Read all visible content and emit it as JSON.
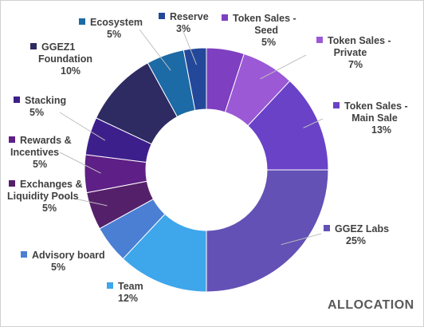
{
  "chart_data": {
    "type": "pie",
    "variant": "donut",
    "title": "ALLOCATION",
    "legend": "none",
    "slices": [
      {
        "label": "Token Sales - Seed",
        "lines": [
          "Token Sales -",
          "Seed"
        ],
        "value": 5,
        "pct_label": "5%",
        "color": "#7e3fc0"
      },
      {
        "label": "Token Sales - Private",
        "lines": [
          "Token Sales -",
          "Private"
        ],
        "value": 7,
        "pct_label": "7%",
        "color": "#9b59d6"
      },
      {
        "label": "Token Sales - Main Sale",
        "lines": [
          "Token Sales -",
          "Main Sale"
        ],
        "value": 13,
        "pct_label": "13%",
        "color": "#6a42c8"
      },
      {
        "label": "GGEZ Labs",
        "lines": [
          "GGEZ Labs"
        ],
        "value": 25,
        "pct_label": "25%",
        "color": "#6351b5"
      },
      {
        "label": "Team",
        "lines": [
          "Team"
        ],
        "value": 12,
        "pct_label": "12%",
        "color": "#3ea6ea"
      },
      {
        "label": "Advisory board",
        "lines": [
          "Advisory board"
        ],
        "value": 5,
        "pct_label": "5%",
        "color": "#4a7fd4"
      },
      {
        "label": "Exchanges & Liquidity Pools",
        "lines": [
          "Exchanges &",
          "Liquidity Pools"
        ],
        "value": 5,
        "pct_label": "5%",
        "color": "#55206a"
      },
      {
        "label": "Rewards & Incentives",
        "lines": [
          "Rewards &",
          "Incentives"
        ],
        "value": 5,
        "pct_label": "5%",
        "color": "#5e1f86"
      },
      {
        "label": "Stacking",
        "lines": [
          "Stacking"
        ],
        "value": 5,
        "pct_label": "5%",
        "color": "#3d1f8c"
      },
      {
        "label": "GGEZ1 Foundation",
        "lines": [
          "GGEZ1",
          "Foundation"
        ],
        "value": 10,
        "pct_label": "10%",
        "color": "#2e2a62"
      },
      {
        "label": "Ecosystem",
        "lines": [
          "Ecosystem"
        ],
        "value": 5,
        "pct_label": "5%",
        "color": "#1c6aa6"
      },
      {
        "label": "Reserve",
        "lines": [
          "Reserve"
        ],
        "value": 3,
        "pct_label": "3%",
        "color": "#23489a"
      }
    ]
  }
}
